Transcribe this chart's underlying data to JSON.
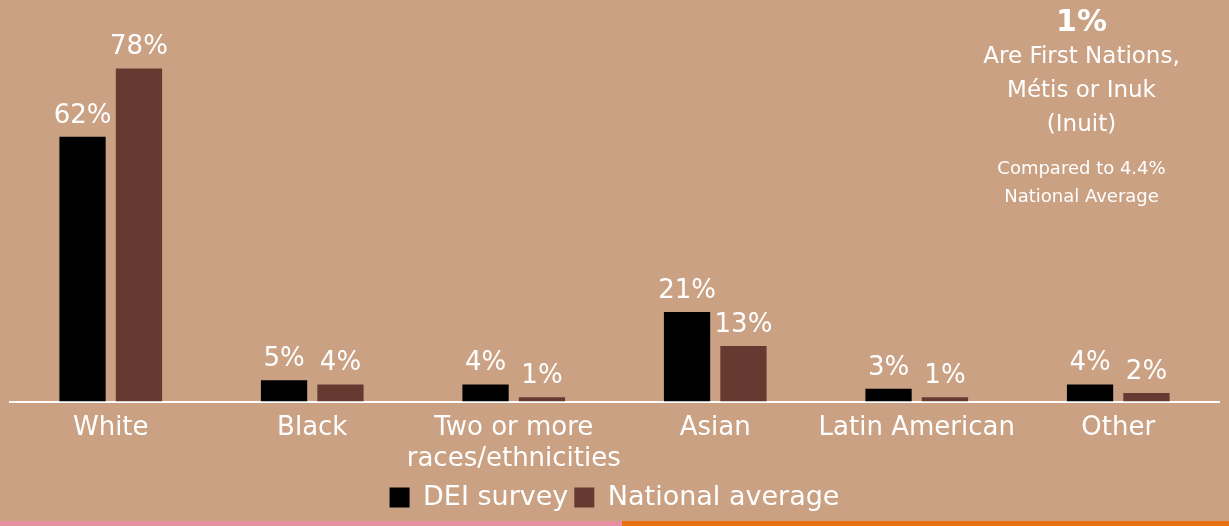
{
  "chart_data": {
    "type": "bar",
    "categories": [
      "White",
      "Black",
      "Two or more races/ethnicities",
      "Asian",
      "Latin American",
      "Other"
    ],
    "series": [
      {
        "name": "DEI survey",
        "color": "#000000",
        "values": [
          62,
          5,
          4,
          21,
          3,
          4
        ],
        "value_labels": [
          "62%",
          "5%",
          "4%",
          "21%",
          "3%",
          "4%"
        ]
      },
      {
        "name": "National average",
        "color": "#653a30",
        "values": [
          78,
          4,
          1,
          13,
          1,
          2
        ],
        "value_labels": [
          "78%",
          "4%",
          "1%",
          "13%",
          "1%",
          "2%"
        ]
      }
    ],
    "annotations": [
      "1%",
      "Are First Nations, Métis or Inuk (Inuit)",
      "Compared to 4.4% National Average"
    ],
    "legend": "bottom",
    "grid": false
  }
}
